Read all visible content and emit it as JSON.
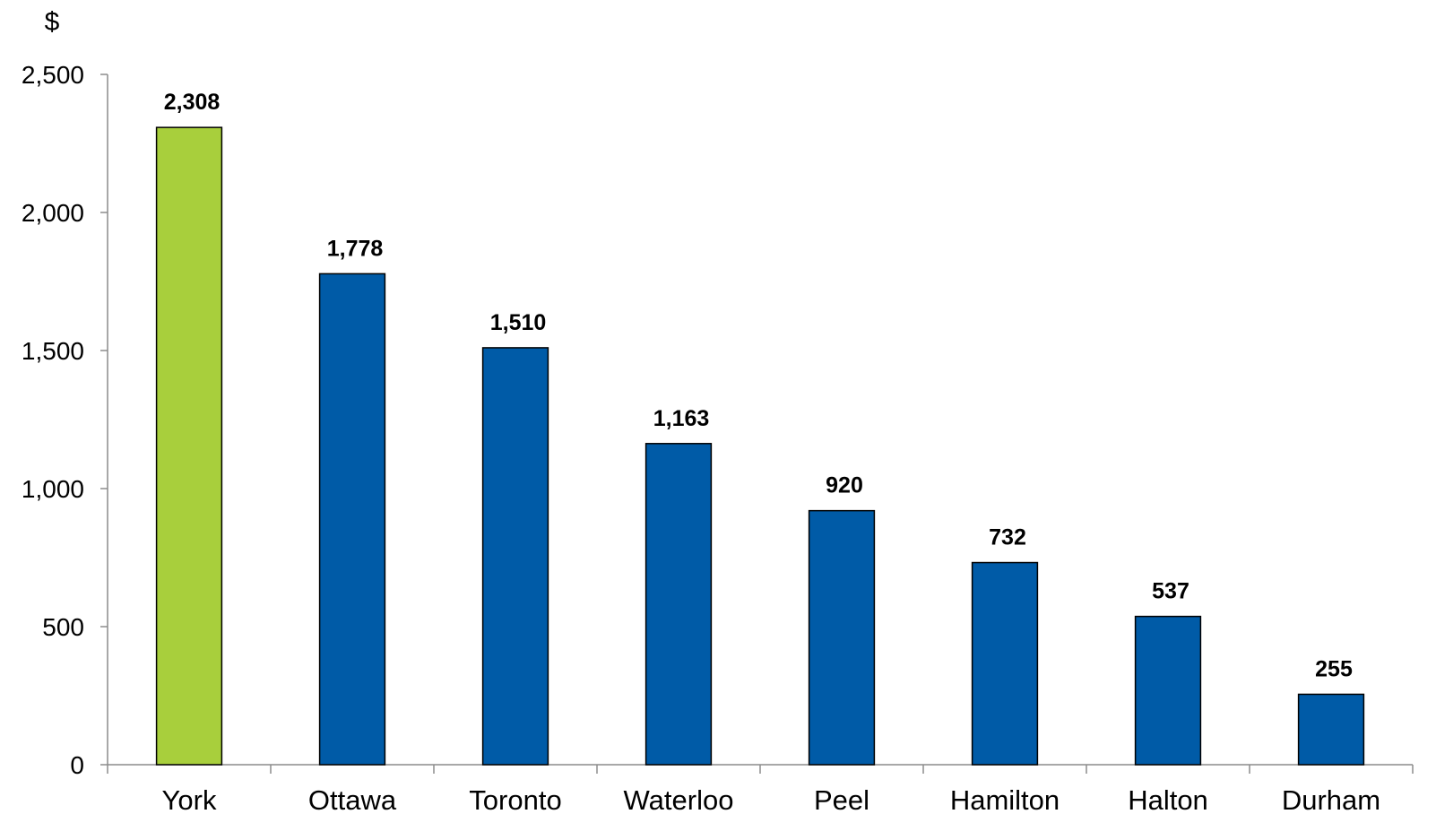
{
  "chart_data": {
    "type": "bar",
    "ylabel": "$",
    "categories": [
      "York",
      "Ottawa",
      "Toronto",
      "Waterloo",
      "Peel",
      "Hamilton",
      "Halton",
      "Durham"
    ],
    "values": [
      2308,
      1778,
      1510,
      1163,
      920,
      732,
      537,
      255
    ],
    "data_labels": [
      "2,308",
      "1,778",
      "1,510",
      "1,163",
      "920",
      "732",
      "537",
      "255"
    ],
    "ylim": [
      0,
      2500
    ],
    "yticks": [
      0,
      500,
      1000,
      1500,
      2000,
      2500
    ],
    "ytick_labels": [
      "0",
      "500",
      "1,000",
      "1,500",
      "2,000",
      "2,500"
    ],
    "grid": false,
    "legend": "none",
    "colors": {
      "highlight": "#a8cf3c",
      "default": "#005ba7",
      "axis": "#8c8c8c"
    },
    "highlight_category": "York"
  }
}
